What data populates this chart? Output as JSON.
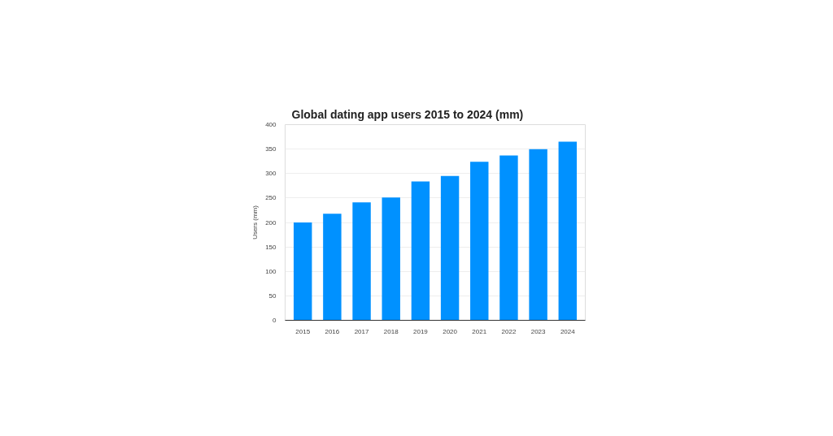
{
  "chart_data": {
    "type": "bar",
    "title": "Global dating app users 2015 to 2024 (mm)",
    "ylabel": "Users (mm)",
    "categories": [
      "2015",
      "2016",
      "2017",
      "2018",
      "2019",
      "2020",
      "2021",
      "2022",
      "2023",
      "2024"
    ],
    "values": [
      200,
      218,
      241,
      251,
      284,
      295,
      324,
      337,
      350,
      365
    ],
    "color": "#0091ff",
    "ylim": [
      0,
      400
    ],
    "yticks": [
      0,
      50,
      100,
      150,
      200,
      250,
      300,
      350,
      400
    ],
    "grid": "y"
  }
}
